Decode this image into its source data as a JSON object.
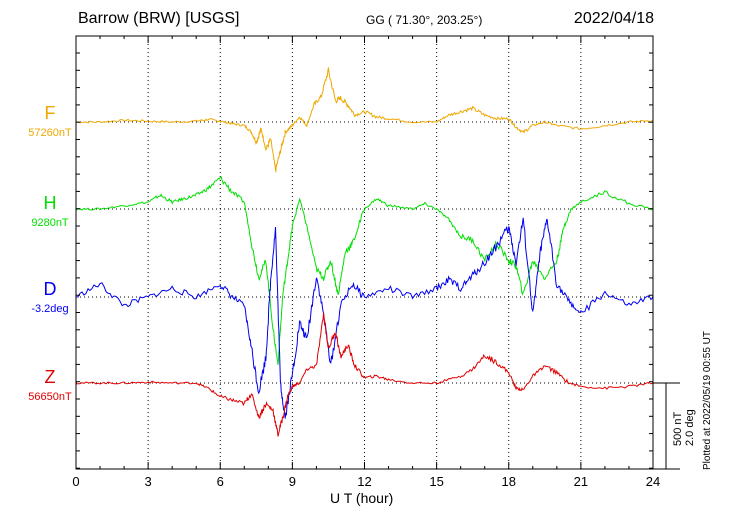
{
  "header": {
    "station": "Barrow (BRW)  [USGS]",
    "coords": "GG ( 71.30°, 203.25°)",
    "date": "2022/04/18"
  },
  "plotted_note": "Plotted at 2022/05/19 00:55 UT",
  "scale": {
    "nt": "500 nT",
    "deg": "2.0 deg"
  },
  "chart_data": {
    "type": "line",
    "xlabel": "U T (hour)",
    "xlim": [
      0,
      24
    ],
    "xticks": [
      0,
      3,
      6,
      9,
      12,
      15,
      18,
      21,
      24
    ],
    "grid": true,
    "series": [
      {
        "name": "F",
        "baseline": "57260nT",
        "color": "#f0a800",
        "x": [
          0,
          1,
          2,
          3,
          4,
          5,
          5.5,
          6,
          6.5,
          7,
          7.3,
          7.5,
          7.7,
          7.9,
          8.1,
          8.3,
          8.5,
          8.7,
          9,
          9.3,
          9.6,
          9.9,
          10.2,
          10.5,
          10.8,
          11,
          11.3,
          11.6,
          12,
          12.5,
          13,
          14,
          15,
          15.5,
          16,
          16.5,
          17,
          17.5,
          18,
          18.3,
          18.6,
          19,
          19.5,
          20,
          21,
          22,
          23,
          24
        ],
        "y": [
          0,
          0,
          10,
          5,
          0,
          5,
          15,
          5,
          -10,
          -20,
          -60,
          -120,
          -40,
          -160,
          -100,
          -280,
          -170,
          -60,
          -20,
          30,
          -20,
          100,
          150,
          300,
          120,
          140,
          100,
          40,
          60,
          30,
          20,
          0,
          0,
          40,
          60,
          80,
          40,
          20,
          20,
          -30,
          -60,
          -20,
          0,
          -20,
          -40,
          -20,
          0,
          10
        ]
      },
      {
        "name": "H",
        "baseline": "9280nT",
        "color": "#00e000",
        "x": [
          0,
          1,
          2,
          3,
          3.5,
          4,
          4.5,
          5,
          5.5,
          6,
          6.5,
          7,
          7.3,
          7.6,
          7.9,
          8.2,
          8.4,
          8.6,
          8.8,
          9,
          9.3,
          9.6,
          10,
          10.3,
          10.6,
          10.9,
          11.2,
          11.5,
          12,
          12.5,
          13,
          14,
          14.5,
          15,
          15.5,
          16,
          16.5,
          17,
          17.5,
          18,
          18.3,
          18.6,
          19,
          19.5,
          20,
          20.3,
          20.6,
          21,
          22,
          23,
          24
        ],
        "y": [
          0,
          0,
          20,
          40,
          80,
          40,
          60,
          80,
          120,
          180,
          100,
          40,
          -200,
          -400,
          -300,
          -700,
          -900,
          -500,
          -300,
          -100,
          60,
          -100,
          -350,
          -400,
          -300,
          -500,
          -250,
          -200,
          0,
          60,
          20,
          0,
          30,
          0,
          -60,
          -160,
          -180,
          -300,
          -200,
          -300,
          -330,
          -500,
          -300,
          -400,
          -300,
          -100,
          0,
          40,
          100,
          30,
          0
        ]
      },
      {
        "name": "D",
        "baseline": "-3.2deg",
        "color": "#0000f0",
        "x": [
          0,
          1,
          2,
          3,
          4,
          5,
          6,
          6.5,
          7,
          7.3,
          7.6,
          7.9,
          8.1,
          8.3,
          8.5,
          8.7,
          9,
          9.3,
          9.6,
          10,
          10.3,
          10.6,
          11,
          11.5,
          12,
          13,
          14,
          15,
          15.5,
          16,
          16.5,
          17,
          17.5,
          18,
          18.3,
          18.6,
          19,
          19.3,
          19.6,
          20,
          20.5,
          21,
          22,
          23,
          24
        ],
        "y": [
          0,
          0.3,
          -0.2,
          0,
          0.2,
          0,
          0.3,
          0,
          -0.2,
          -1.2,
          -2.2,
          -1.4,
          0.4,
          1.6,
          -2,
          -2.8,
          -1.8,
          -0.6,
          -1,
          0.5,
          -0.4,
          -1.6,
          -0.2,
          0.3,
          0,
          0.2,
          0,
          0.2,
          0.4,
          0.2,
          0.5,
          0.8,
          1.2,
          1.6,
          0.8,
          1.8,
          -0.4,
          1,
          1.8,
          0.3,
          -0.1,
          -0.4,
          0.1,
          -0.2,
          0
        ]
      },
      {
        "name": "Z",
        "baseline": "56650nT",
        "color": "#e00000",
        "x": [
          0,
          1,
          2,
          3,
          4,
          5,
          5.5,
          6,
          6.5,
          7,
          7.3,
          7.6,
          7.9,
          8.2,
          8.4,
          8.6,
          8.8,
          9,
          9.3,
          9.6,
          10,
          10.3,
          10.5,
          10.8,
          11,
          11.3,
          11.6,
          12,
          12.5,
          13,
          14,
          15,
          16,
          16.5,
          17,
          17.5,
          18,
          18.3,
          18.6,
          19,
          19.5,
          20,
          20.5,
          21,
          22,
          23,
          24
        ],
        "y": [
          0,
          0,
          0,
          5,
          0,
          0,
          -30,
          -80,
          -100,
          -120,
          -60,
          -200,
          -120,
          -160,
          -300,
          -200,
          -80,
          -20,
          0,
          80,
          100,
          400,
          200,
          300,
          150,
          220,
          100,
          30,
          40,
          20,
          0,
          0,
          40,
          80,
          160,
          120,
          60,
          -30,
          -40,
          40,
          100,
          60,
          0,
          -20,
          -30,
          -20,
          0
        ]
      }
    ]
  }
}
